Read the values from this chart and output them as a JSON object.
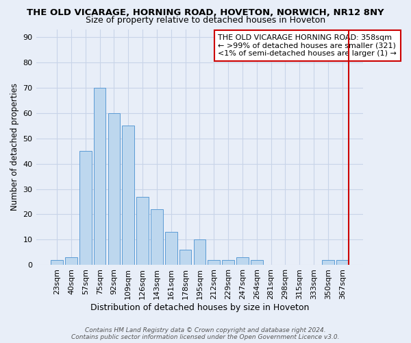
{
  "title": "THE OLD VICARAGE, HORNING ROAD, HOVETON, NORWICH, NR12 8NY",
  "subtitle": "Size of property relative to detached houses in Hoveton",
  "xlabel": "Distribution of detached houses by size in Hoveton",
  "ylabel": "Number of detached properties",
  "categories": [
    "23sqm",
    "40sqm",
    "57sqm",
    "75sqm",
    "92sqm",
    "109sqm",
    "126sqm",
    "143sqm",
    "161sqm",
    "178sqm",
    "195sqm",
    "212sqm",
    "229sqm",
    "247sqm",
    "264sqm",
    "281sqm",
    "298sqm",
    "315sqm",
    "333sqm",
    "350sqm",
    "367sqm"
  ],
  "values": [
    2,
    3,
    45,
    70,
    60,
    55,
    27,
    22,
    13,
    6,
    10,
    2,
    2,
    3,
    2,
    0,
    0,
    0,
    0,
    2,
    2
  ],
  "bar_color": "#bdd7ee",
  "bar_edge_color": "#5b9bd5",
  "highlight_index": 20,
  "highlight_color": "#cc0000",
  "ylim": [
    0,
    93
  ],
  "yticks": [
    0,
    10,
    20,
    30,
    40,
    50,
    60,
    70,
    80,
    90
  ],
  "grid_color": "#c8d4e8",
  "background_color": "#e8eef8",
  "annotation_text": "THE OLD VICARAGE HORNING ROAD: 358sqm\n← >99% of detached houses are smaller (321)\n<1% of semi-detached houses are larger (1) →",
  "annotation_box_color": "#ffffff",
  "annotation_border_color": "#cc0000",
  "footer": "Contains HM Land Registry data © Crown copyright and database right 2024.\nContains public sector information licensed under the Open Government Licence v3.0.",
  "title_fontsize": 9.5,
  "subtitle_fontsize": 9,
  "ylabel_fontsize": 8.5,
  "xlabel_fontsize": 9,
  "tick_fontsize": 8,
  "annotation_fontsize": 8,
  "footer_fontsize": 6.5
}
